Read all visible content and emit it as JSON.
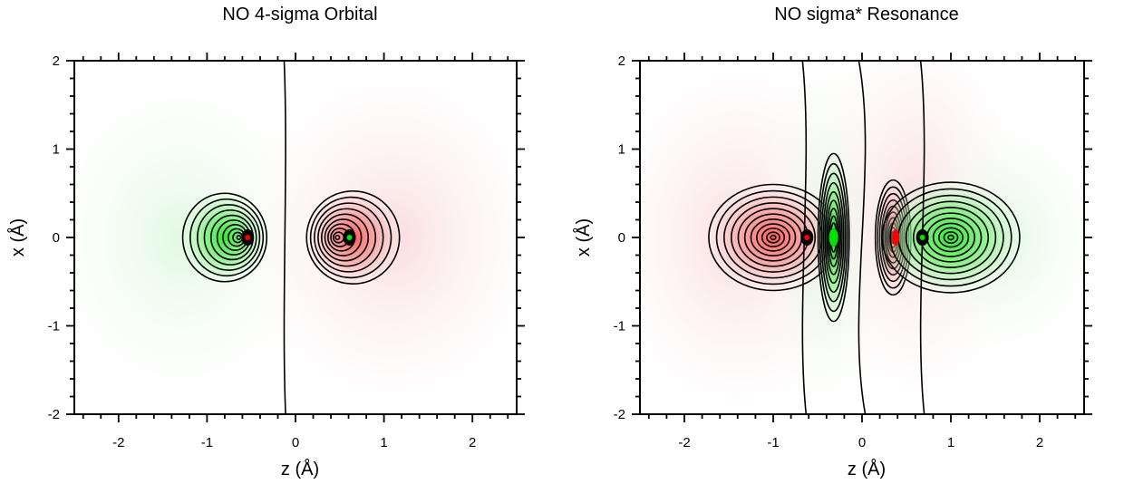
{
  "chart_data": [
    {
      "type": "heatmap",
      "title": "NO 4-sigma Orbital",
      "xlabel": "z (Å)",
      "ylabel": "x (Å)",
      "xlim": [
        -2.5,
        2.5
      ],
      "ylim": [
        -2,
        2
      ],
      "xticks": [
        -2,
        -1,
        0,
        1,
        2
      ],
      "yticks": [
        -2,
        -1,
        0,
        1,
        2
      ],
      "xtick_labels": [
        "-2",
        "-1",
        "0",
        "1",
        "2"
      ],
      "ytick_labels": [
        "-2",
        "-1",
        "0",
        "1",
        "2"
      ],
      "positive_color": "#ff0000",
      "negative_color": "#00e000",
      "contour_color": "#000000",
      "nuclei_z": [
        -0.54,
        0.61
      ],
      "lobes": [
        {
          "z": -0.8,
          "x": 0.0,
          "sign": "negative",
          "extent_z": 0.95,
          "extent_x": 1.0
        },
        {
          "z": 0.65,
          "x": 0.0,
          "sign": "positive",
          "extent_z": 1.05,
          "extent_x": 1.05
        }
      ],
      "nodal_plane_z": -0.12
    },
    {
      "type": "heatmap",
      "title": "NO sigma* Resonance",
      "xlabel": "z (Å)",
      "ylabel": "x (Å)",
      "xlim": [
        -2.5,
        2.5
      ],
      "ylim": [
        -2,
        2
      ],
      "xticks": [
        -2,
        -1,
        0,
        1,
        2
      ],
      "yticks": [
        -2,
        -1,
        0,
        1,
        2
      ],
      "xtick_labels": [
        "-2",
        "-1",
        "0",
        "1",
        "2"
      ],
      "ytick_labels": [
        "-2",
        "-1",
        "0",
        "1",
        "2"
      ],
      "positive_color": "#ff0000",
      "negative_color": "#00e000",
      "contour_color": "#000000",
      "nuclei_z": [
        -0.62,
        0.68
      ],
      "lobes": [
        {
          "z": -1.0,
          "x": 0.0,
          "sign": "positive",
          "extent_z": 1.45,
          "extent_x": 1.2
        },
        {
          "z": -0.32,
          "x": 0.0,
          "sign": "negative",
          "extent_z": 0.35,
          "extent_x": 1.9
        },
        {
          "z": 0.35,
          "x": 0.0,
          "sign": "positive",
          "extent_z": 0.4,
          "extent_x": 1.3
        },
        {
          "z": 1.0,
          "x": 0.0,
          "sign": "negative",
          "extent_z": 1.55,
          "extent_x": 1.25
        }
      ],
      "nodal_planes_z": [
        -0.65,
        0.0,
        0.68
      ]
    }
  ]
}
